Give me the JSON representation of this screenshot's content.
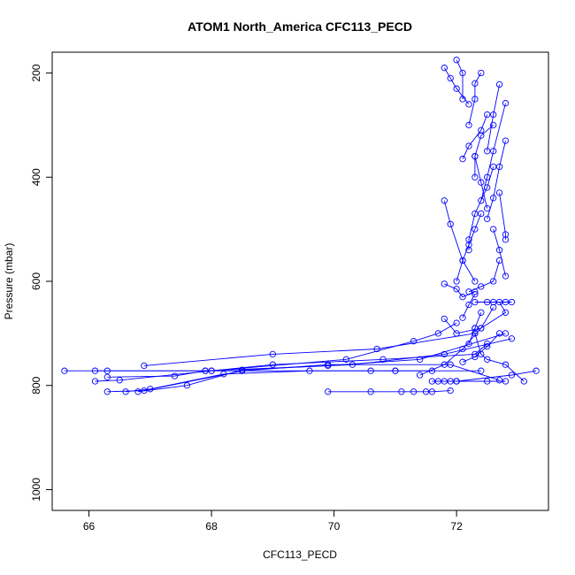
{
  "chart_data": {
    "type": "line",
    "title": "ATOM1 North_America CFC113_PECD",
    "xlabel": "CFC113_PECD",
    "ylabel": "Pressure (mbar)",
    "xlim": [
      65.4,
      73.5
    ],
    "ylim": [
      1040,
      160
    ],
    "y_reversed": true,
    "x_ticks": [
      66,
      68,
      70,
      72
    ],
    "y_ticks": [
      200,
      400,
      600,
      800,
      1000
    ],
    "grid": false,
    "legend": "none",
    "series_color": "#0000ff",
    "marker": "open-circle",
    "series": [
      {
        "x": [
          65.6,
          66.3,
          67.9,
          70.6,
          71.0,
          71.6
        ],
        "y": [
          772,
          772,
          772,
          772,
          772,
          772
        ]
      },
      {
        "x": [
          66.1,
          68.0,
          70.2,
          71.3,
          71.7,
          72.0
        ],
        "y": [
          772,
          772,
          750,
          715,
          700,
          680
        ]
      },
      {
        "x": [
          66.3,
          66.9,
          68.5,
          69.9,
          71.9,
          72.7
        ],
        "y": [
          812,
          810,
          772,
          760,
          760,
          790
        ]
      },
      {
        "x": [
          66.6,
          67.0,
          68.2,
          69.6,
          71.0,
          72.4
        ],
        "y": [
          812,
          807,
          778,
          772,
          772,
          772
        ]
      },
      {
        "x": [
          66.1,
          66.5,
          68.0,
          69.0,
          70.8,
          72.3,
          72.5
        ],
        "y": [
          792,
          790,
          772,
          760,
          750,
          740,
          720
        ]
      },
      {
        "x": [
          66.3,
          67.4,
          67.9,
          69.9,
          71.4,
          72.8
        ],
        "y": [
          784,
          782,
          772,
          762,
          750,
          700
        ]
      },
      {
        "x": [
          66.8,
          67.6,
          68.5,
          70.3,
          71.8,
          72.9
        ],
        "y": [
          812,
          800,
          770,
          760,
          740,
          710
        ]
      },
      {
        "x": [
          66.9,
          69.0,
          70.7,
          72.3,
          72.3
        ],
        "y": [
          762,
          740,
          730,
          700,
          690
        ]
      },
      {
        "x": [
          69.9,
          70.6,
          71.1,
          71.3,
          71.5,
          71.6,
          71.9
        ],
        "y": [
          812,
          812,
          812,
          812,
          812,
          812,
          810
        ]
      },
      {
        "x": [
          71.6,
          71.8,
          72.0,
          72.5
        ],
        "y": [
          792,
          792,
          792,
          792
        ]
      },
      {
        "x": [
          71.7,
          71.9,
          72.0,
          72.8
        ],
        "y": [
          792,
          792,
          792,
          792
        ]
      },
      {
        "x": [
          72.0,
          72.9,
          73.3
        ],
        "y": [
          792,
          780,
          772
        ]
      },
      {
        "x": [
          73.1,
          72.8,
          72.5,
          72.4,
          72.3
        ],
        "y": [
          792,
          760,
          750,
          740,
          700
        ]
      },
      {
        "x": [
          71.4,
          71.8,
          72.1,
          72.4,
          72.6
        ],
        "y": [
          780,
          760,
          730,
          690,
          650
        ]
      },
      {
        "x": [
          71.8,
          72.0,
          72.4,
          72.8,
          72.7
        ],
        "y": [
          672,
          700,
          690,
          660,
          640
        ]
      },
      {
        "x": [
          72.1,
          72.3,
          72.5,
          72.7
        ],
        "y": [
          755,
          745,
          725,
          700
        ]
      },
      {
        "x": [
          72.5,
          72.3,
          72.6,
          72.8,
          72.9
        ],
        "y": [
          640,
          640,
          640,
          640,
          640
        ]
      },
      {
        "x": [
          72.2,
          72.4,
          72.6,
          72.7
        ],
        "y": [
          620,
          610,
          600,
          560
        ]
      },
      {
        "x": [
          71.8,
          72.0,
          72.1,
          72.3
        ],
        "y": [
          605,
          615,
          630,
          620
        ]
      },
      {
        "x": [
          72.0,
          72.1,
          72.2,
          72.3,
          72.4
        ],
        "y": [
          600,
          560,
          530,
          500,
          470
        ]
      },
      {
        "x": [
          72.2,
          72.2,
          72.3,
          72.5,
          72.6
        ],
        "y": [
          540,
          520,
          470,
          420,
          380
        ]
      },
      {
        "x": [
          72.8,
          72.8,
          72.7
        ],
        "y": [
          520,
          510,
          430
        ]
      },
      {
        "x": [
          72.5,
          72.6,
          72.7,
          72.8
        ],
        "y": [
          480,
          440,
          380,
          330
        ]
      },
      {
        "x": [
          72.4,
          72.5,
          72.6,
          72.8
        ],
        "y": [
          445,
          400,
          350,
          258
        ]
      },
      {
        "x": [
          71.8,
          71.9,
          72.1,
          72.3
        ],
        "y": [
          445,
          490,
          560,
          600
        ]
      },
      {
        "x": [
          72.3,
          72.3,
          72.4,
          72.6
        ],
        "y": [
          400,
          360,
          320,
          300
        ]
      },
      {
        "x": [
          72.1,
          72.2,
          72.4,
          72.5
        ],
        "y": [
          365,
          340,
          310,
          280
        ]
      },
      {
        "x": [
          72.2,
          72.3,
          72.3,
          72.4
        ],
        "y": [
          300,
          250,
          220,
          200
        ]
      },
      {
        "x": [
          71.8,
          71.9,
          72.0,
          72.2
        ],
        "y": [
          190,
          210,
          230,
          260
        ]
      },
      {
        "x": [
          72.0,
          72.1,
          72.1
        ],
        "y": [
          175,
          200,
          250
        ]
      },
      {
        "x": [
          72.7,
          72.6,
          72.5
        ],
        "y": [
          222,
          280,
          350
        ]
      },
      {
        "x": [
          72.3,
          72.4,
          72.5
        ],
        "y": [
          360,
          410,
          460
        ]
      },
      {
        "x": [
          72.6,
          72.7,
          72.8
        ],
        "y": [
          500,
          540,
          590
        ]
      },
      {
        "x": [
          72.4,
          72.3,
          72.2
        ],
        "y": [
          660,
          690,
          720
        ]
      },
      {
        "x": [
          72.1,
          72.2,
          72.3
        ],
        "y": [
          670,
          645,
          625
        ]
      }
    ]
  }
}
